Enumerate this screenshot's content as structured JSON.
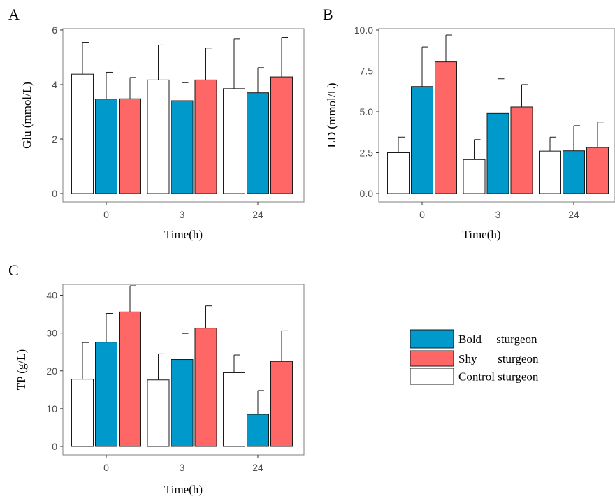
{
  "chart_data": [
    {
      "type": "bar",
      "panel": "A",
      "categories": [
        "0",
        "3",
        "24"
      ],
      "xlabel": "Time(h)",
      "ylabel": "Glu (mmol/L)",
      "ylim": [
        0,
        6
      ],
      "yticks": [
        "0",
        "2",
        "4",
        "6"
      ],
      "ytick_values": [
        0,
        2,
        4,
        6
      ],
      "series": [
        {
          "name": "Control sturgeon",
          "color": "#ffffff",
          "values": [
            4.38,
            4.17,
            3.85
          ],
          "errors": [
            1.17,
            1.28,
            1.82
          ]
        },
        {
          "name": "Bold sturgeon",
          "color": "#0099cc",
          "values": [
            3.47,
            3.41,
            3.7
          ],
          "errors": [
            0.98,
            0.66,
            0.92
          ]
        },
        {
          "name": "Shy sturgeon",
          "color": "#ff6666",
          "values": [
            3.48,
            4.17,
            4.28
          ],
          "errors": [
            0.78,
            1.17,
            1.45
          ]
        }
      ]
    },
    {
      "type": "bar",
      "panel": "B",
      "categories": [
        "0",
        "3",
        "24"
      ],
      "xlabel": "Time(h)",
      "ylabel": "LD (mmol/L)",
      "ylim": [
        0,
        10
      ],
      "yticks": [
        "0.0",
        "2.5",
        "5.0",
        "7.5",
        "10.0"
      ],
      "ytick_values": [
        0,
        2.5,
        5,
        7.5,
        10
      ],
      "series": [
        {
          "name": "Control sturgeon",
          "color": "#ffffff",
          "values": [
            2.5,
            2.08,
            2.6
          ],
          "errors": [
            0.95,
            1.22,
            0.85
          ]
        },
        {
          "name": "Bold sturgeon",
          "color": "#0099cc",
          "values": [
            6.55,
            4.9,
            2.62
          ],
          "errors": [
            2.42,
            2.12,
            1.53
          ]
        },
        {
          "name": "Shy sturgeon",
          "color": "#ff6666",
          "values": [
            8.05,
            5.3,
            2.82
          ],
          "errors": [
            1.65,
            1.37,
            1.55
          ]
        }
      ]
    },
    {
      "type": "bar",
      "panel": "C",
      "categories": [
        "0",
        "3",
        "24"
      ],
      "xlabel": "Time(h)",
      "ylabel": "TP (g/L)",
      "ylim": [
        0,
        42.5
      ],
      "yticks": [
        "0",
        "10",
        "20",
        "30",
        "40"
      ],
      "ytick_values": [
        0,
        10,
        20,
        30,
        40
      ],
      "series": [
        {
          "name": "Control sturgeon",
          "color": "#ffffff",
          "values": [
            17.8,
            17.6,
            19.5
          ],
          "errors": [
            9.7,
            6.9,
            4.7
          ]
        },
        {
          "name": "Bold sturgeon",
          "color": "#0099cc",
          "values": [
            27.6,
            23.0,
            8.5
          ],
          "errors": [
            7.6,
            6.9,
            6.3
          ]
        },
        {
          "name": "Shy sturgeon",
          "color": "#ff6666",
          "values": [
            35.6,
            31.3,
            22.5
          ],
          "errors": [
            6.9,
            5.9,
            8.1
          ]
        }
      ]
    }
  ],
  "legend": {
    "placement": "right of panel C",
    "items": [
      {
        "label": "Bold     sturgeon",
        "color": "#0099cc"
      },
      {
        "label": "Shy       sturgeon",
        "color": "#ff6666"
      },
      {
        "label": "Control sturgeon",
        "color": "#ffffff"
      }
    ]
  }
}
